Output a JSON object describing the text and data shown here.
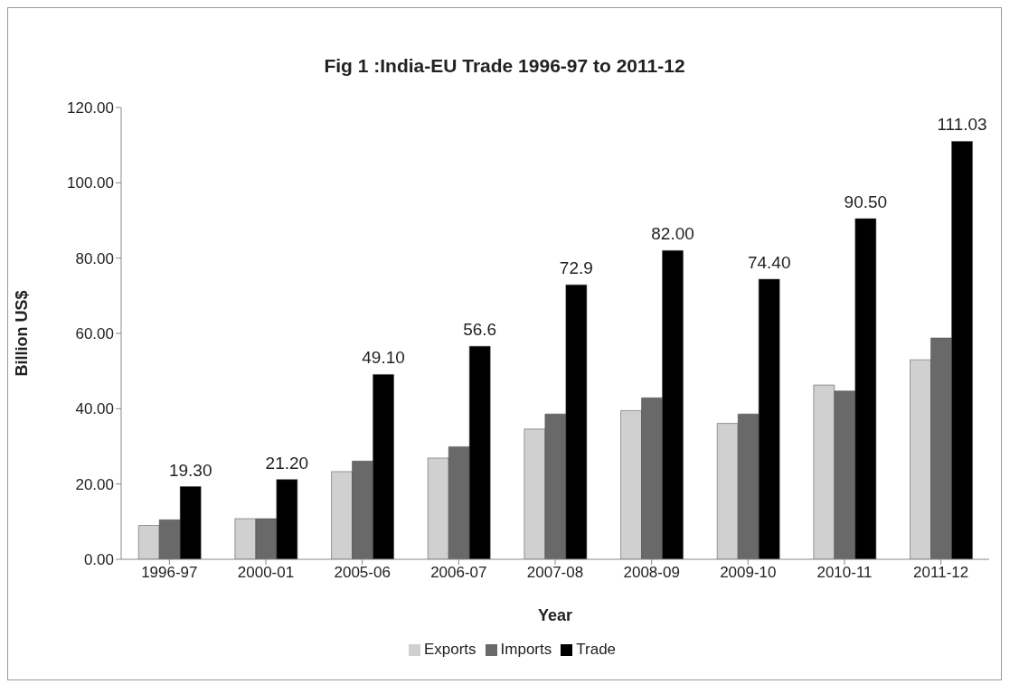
{
  "chart_data": {
    "type": "bar",
    "title": "Fig 1 :India-EU Trade 1996-97 to 2011-12",
    "xlabel": "Year",
    "ylabel": "Billion US$",
    "categories": [
      "1996-97",
      "2000-01",
      "2005-06",
      "2006-07",
      "2007-08",
      "2008-09",
      "2009-10",
      "2010-11",
      "2011-12"
    ],
    "series": [
      {
        "name": "Exports",
        "color": "#d0d0d0",
        "values": [
          9.0,
          10.8,
          23.3,
          26.9,
          34.6,
          39.5,
          36.1,
          46.3,
          53.0
        ]
      },
      {
        "name": "Imports",
        "color": "#696969",
        "values": [
          10.5,
          10.8,
          26.1,
          29.9,
          38.6,
          42.9,
          38.6,
          44.7,
          58.8
        ]
      },
      {
        "name": "Trade",
        "color": "#000000",
        "values": [
          19.3,
          21.2,
          49.1,
          56.6,
          72.9,
          82.0,
          74.4,
          90.5,
          111.03
        ],
        "value_labels": [
          "19.30",
          "21.20",
          "49.10",
          "56.6",
          "72.9",
          "82.00",
          "74.40",
          "90.50",
          "111.03"
        ]
      }
    ],
    "ylim": [
      0,
      120
    ],
    "yticks": [
      {
        "value": 0,
        "label": "0.00"
      },
      {
        "value": 20,
        "label": "20.00"
      },
      {
        "value": 40,
        "label": "40.00"
      },
      {
        "value": 60,
        "label": "60.00"
      },
      {
        "value": 80,
        "label": "80.00"
      },
      {
        "value": 100,
        "label": "100.00"
      },
      {
        "value": 120,
        "label": "120.00"
      }
    ],
    "grid": false,
    "legend": "bottom"
  }
}
